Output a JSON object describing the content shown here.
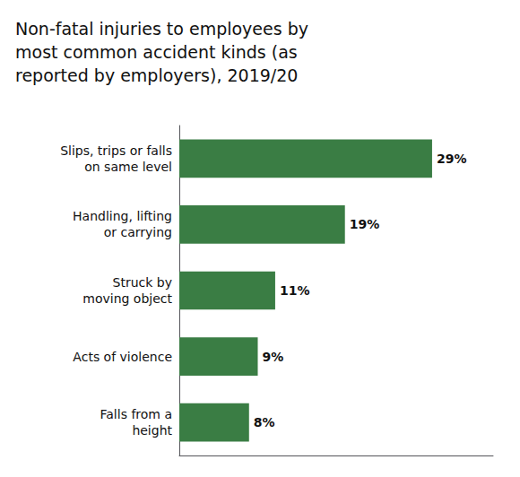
{
  "chart_data": {
    "type": "bar",
    "title": "Non-fatal injuries to employees by\nmost common accident kinds (as\nreported by employers), 2019/20",
    "orientation": "horizontal",
    "categories": [
      "Slips, trips or falls\non same level",
      "Handling, lifting\nor carrying",
      "Struck by\nmoving object",
      "Acts of violence",
      "Falls from a\nheight"
    ],
    "values": [
      29,
      19,
      11,
      9,
      8
    ],
    "value_labels": [
      "29%",
      "19%",
      "11%",
      "9%",
      "8%"
    ],
    "data_labels": true,
    "color": "#3a7d44",
    "xlim": [
      0,
      36
    ],
    "tick_labels": "y",
    "grid": false
  }
}
